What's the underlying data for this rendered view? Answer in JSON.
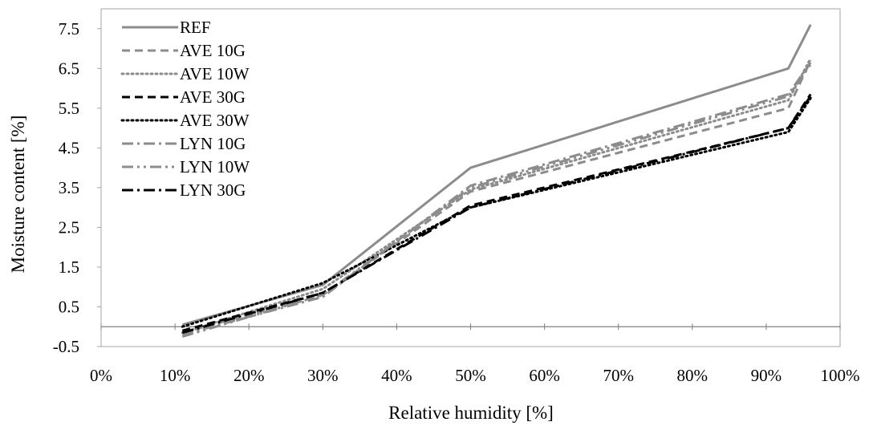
{
  "chart_data": {
    "type": "line",
    "title": "",
    "xlabel": "Relative humidity [%]",
    "ylabel": "Moisture content [%]",
    "xlim": [
      0,
      100
    ],
    "ylim": [
      -0.5,
      8
    ],
    "x_ticks": [
      "0%",
      "10%",
      "20%",
      "30%",
      "40%",
      "50%",
      "60%",
      "70%",
      "80%",
      "90%",
      "100%"
    ],
    "y_ticks": [
      "-0.5",
      "0.5",
      "1.5",
      "2.5",
      "3.5",
      "4.5",
      "5.5",
      "6.5",
      "7.5"
    ],
    "legend_position": "top-left inside",
    "grid": false,
    "x": [
      11,
      30,
      50,
      93,
      96
    ],
    "series": [
      {
        "name": "REF",
        "values": [
          0.05,
          1.05,
          4.0,
          6.5,
          7.6
        ],
        "color": "#8c8c8c",
        "style": "solid"
      },
      {
        "name": "AVE 10G",
        "values": [
          -0.15,
          0.8,
          3.4,
          5.5,
          6.7
        ],
        "color": "#8c8c8c",
        "style": "dashed"
      },
      {
        "name": "AVE 10W",
        "values": [
          -0.15,
          0.95,
          3.45,
          5.7,
          6.75
        ],
        "color": "#8c8c8c",
        "style": "dotted"
      },
      {
        "name": "AVE 30G",
        "values": [
          -0.1,
          0.85,
          3.05,
          5.0,
          5.85
        ],
        "color": "#000000",
        "style": "dashed"
      },
      {
        "name": "AVE 30W",
        "values": [
          0.0,
          1.1,
          3.0,
          4.9,
          5.75
        ],
        "color": "#000000",
        "style": "dotted"
      },
      {
        "name": "LYN 10G",
        "values": [
          -0.2,
          0.75,
          3.55,
          5.85,
          6.65
        ],
        "color": "#8c8c8c",
        "style": "dashdot"
      },
      {
        "name": "LYN 10W",
        "values": [
          -0.25,
          0.8,
          3.5,
          5.8,
          6.6
        ],
        "color": "#8c8c8c",
        "style": "dashdotdot"
      },
      {
        "name": "LYN 30G",
        "values": [
          -0.15,
          0.85,
          3.0,
          5.0,
          5.8
        ],
        "color": "#000000",
        "style": "dashdot"
      }
    ]
  }
}
